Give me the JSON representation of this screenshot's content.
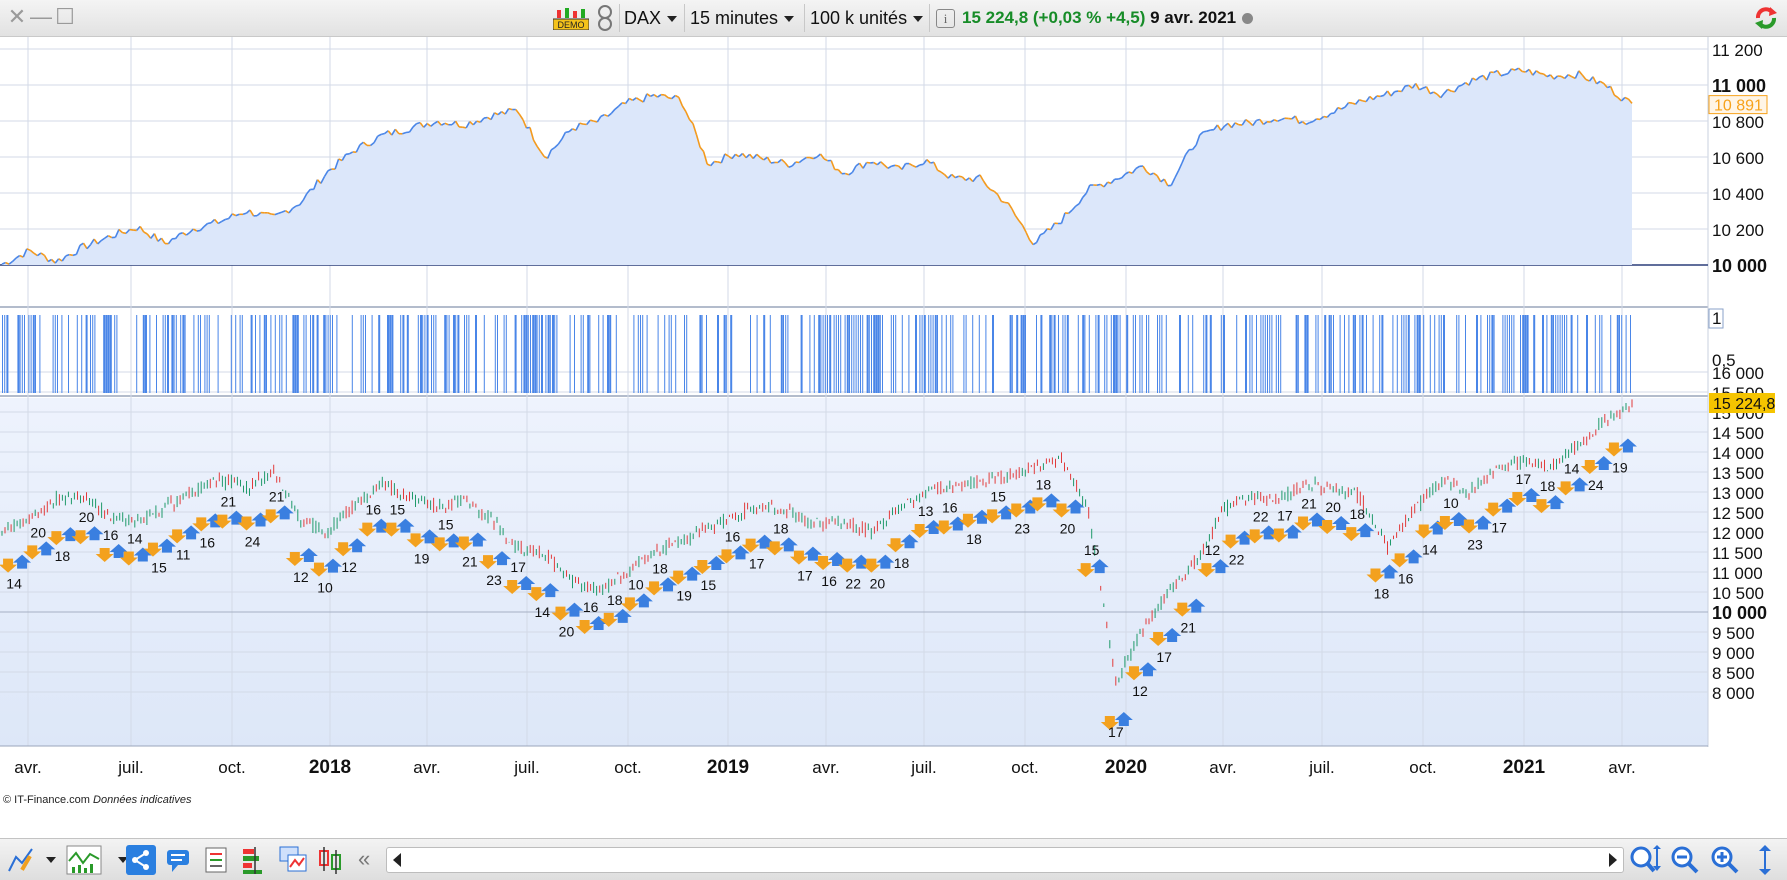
{
  "window": {
    "close": "✕",
    "minimize": "—",
    "maximize": "☐"
  },
  "toolbar": {
    "demo_label": "DEMO",
    "instrument": "DAX",
    "timeframe": "15 minutes",
    "units": "100 k unités",
    "info_icon": "i",
    "quote": "15 224,8 (+0,03 % +4,5)",
    "quote_date": "9 avr. 2021"
  },
  "colors": {
    "blue_line": "#4a86e8",
    "orange_line": "#f39a1e",
    "price_badge_top": "#f7a21b",
    "price_badge_bottom": "#f5c400",
    "green_quote": "#178c28",
    "arrow_up": "#3a7fe0",
    "arrow_down": "#f3a11e"
  },
  "panel1": {
    "y_ticks": [
      "11 200",
      "11 000",
      "10 800",
      "10 600",
      "10 400",
      "10 200",
      "10 000"
    ],
    "bold_ticks": [
      "11 000",
      "10 000"
    ],
    "current_badge": "10 891"
  },
  "panel2": {
    "y_ticks": [
      "1",
      "0,5"
    ]
  },
  "panel3": {
    "y_ticks": [
      "16 000",
      "15 500",
      "15 000",
      "14 500",
      "14 000",
      "13 500",
      "13 000",
      "12 500",
      "12 000",
      "11 500",
      "11 000",
      "10 500",
      "10 000",
      "9 500",
      "9 000",
      "8 500",
      "8 000"
    ],
    "bold_ticks": [
      "10 000"
    ],
    "current_badge": "15 224,8"
  },
  "x_axis": {
    "labels": [
      "avr.",
      "juil.",
      "oct.",
      "2018",
      "avr.",
      "juil.",
      "oct.",
      "2019",
      "avr.",
      "juil.",
      "oct.",
      "2020",
      "avr.",
      "juil.",
      "oct.",
      "2021",
      "avr."
    ],
    "bold": [
      "2018",
      "2019",
      "2020",
      "2021"
    ]
  },
  "signal_labels": [
    "14",
    "20",
    "18",
    "20",
    "16",
    "14",
    "15",
    "11",
    "16",
    "21",
    "24",
    "21",
    "12",
    "10",
    "12",
    "16",
    "15",
    "19",
    "15",
    "21",
    "23",
    "17",
    "14",
    "20",
    "16",
    "18",
    "10",
    "18",
    "19",
    "15",
    "16",
    "17",
    "18",
    "17",
    "16",
    "22",
    "20",
    "18",
    "13",
    "16",
    "18",
    "15",
    "23",
    "18",
    "20",
    "15",
    "17",
    "12",
    "17",
    "21",
    "12",
    "22",
    "22",
    "17",
    "21",
    "20",
    "18",
    "18",
    "16",
    "14",
    "10",
    "23",
    "17",
    "17",
    "18",
    "14",
    "24",
    "19"
  ],
  "footer": {
    "copyright": "© IT-Finance.com",
    "note": "Données indicatives"
  },
  "chart_data": [
    {
      "type": "area",
      "title": "",
      "ylim": [
        10000,
        11250
      ],
      "x_labels": [
        "avr.",
        "juil.",
        "oct.",
        "2018",
        "avr.",
        "juil.",
        "oct.",
        "2019",
        "avr.",
        "juil.",
        "oct.",
        "2020",
        "avr.",
        "juil.",
        "oct.",
        "2021",
        "avr."
      ],
      "values": [
        10000,
        10080,
        10020,
        10100,
        10160,
        10210,
        10120,
        10200,
        10240,
        10300,
        10260,
        10350,
        10520,
        10640,
        10720,
        10760,
        10800,
        10780,
        10830,
        10860,
        10600,
        10760,
        10800,
        10900,
        10940,
        10920,
        10560,
        10620,
        10590,
        10560,
        10620,
        10510,
        10580,
        10530,
        10580,
        10480,
        10480,
        10340,
        10120,
        10250,
        10420,
        10480,
        10550,
        10450,
        10700,
        10780,
        10790,
        10820,
        10800,
        10850,
        10910,
        10950,
        11000,
        10950,
        11020,
        11060,
        11080,
        11050,
        11060,
        11000,
        10891
      ],
      "grid": true
    },
    {
      "type": "bar",
      "title": "",
      "ylim": [
        0,
        1
      ],
      "note_values": "binary signal bars at value 1"
    },
    {
      "type": "line",
      "title": "",
      "ylim": [
        7800,
        16100
      ],
      "x_labels": [
        "avr.",
        "juil.",
        "oct.",
        "2018",
        "avr.",
        "juil.",
        "oct.",
        "2019",
        "avr.",
        "juil.",
        "oct.",
        "2020",
        "avr.",
        "juil.",
        "oct.",
        "2021",
        "avr."
      ],
      "values": [
        12000,
        12300,
        12800,
        12900,
        12400,
        12300,
        12600,
        13000,
        13300,
        13100,
        13500,
        12300,
        12000,
        12700,
        13200,
        12900,
        12600,
        12800,
        12300,
        11600,
        11400,
        10800,
        10500,
        11000,
        11500,
        11800,
        12100,
        12400,
        12700,
        12500,
        12200,
        12200,
        12000,
        12600,
        13000,
        13100,
        13300,
        13400,
        13600,
        13800,
        12500,
        8200,
        9600,
        10500,
        11300,
        12600,
        12900,
        12800,
        13200,
        13100,
        12900,
        11600,
        12600,
        13300,
        13000,
        13500,
        13800,
        13600,
        14200,
        14800,
        15224.8
      ],
      "grid": true
    }
  ]
}
